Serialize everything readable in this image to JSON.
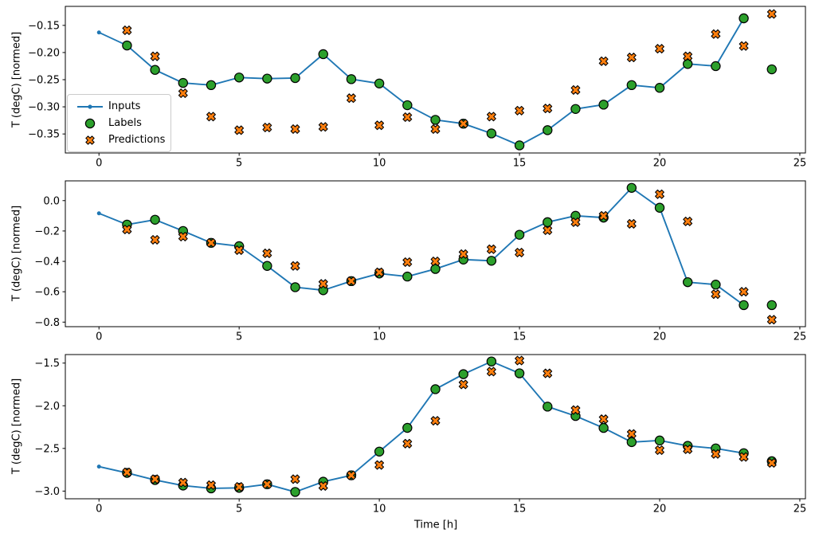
{
  "figure": {
    "xlabel": "Time [h]",
    "ylabel": "T (degC) [normed]",
    "legend": {
      "entries": [
        {
          "label": "Inputs",
          "marker": "line-with-dot",
          "color": "#1f77b4"
        },
        {
          "label": "Labels",
          "marker": "circle",
          "color": "#2ca02c"
        },
        {
          "label": "Predictions",
          "marker": "X",
          "color": "#ff7f0e"
        }
      ]
    },
    "colors": {
      "inputs": "#1f77b4",
      "labels": "#2ca02c",
      "predictions": "#ff7f0e",
      "marker_edge": "#000000",
      "axis": "#000000",
      "legend_border": "#cbcbcb"
    }
  },
  "chart_data": [
    {
      "type": "line",
      "title": "",
      "ylabel": "T (degC) [normed]",
      "xlabel": "",
      "xlim": [
        -1.2,
        25.2
      ],
      "ylim": [
        -0.385,
        -0.115
      ],
      "xticks": [
        0,
        5,
        10,
        15,
        20,
        25
      ],
      "yticks": [
        -0.15,
        -0.2,
        -0.25,
        -0.3,
        -0.35
      ],
      "ytick_labels": [
        "−0.15",
        "−0.20",
        "−0.25",
        "−0.30",
        "−0.35"
      ],
      "grid": false,
      "legend_position": "center left",
      "series": [
        {
          "name": "Inputs",
          "type": "line",
          "marker": "dot",
          "color": "#1f77b4",
          "x": [
            0,
            1,
            2,
            3,
            4,
            5,
            6,
            7,
            8,
            9,
            10,
            11,
            12,
            13,
            14,
            15,
            16,
            17,
            18,
            19,
            20,
            21,
            22,
            23
          ],
          "y": [
            -0.163,
            -0.187,
            -0.232,
            -0.256,
            -0.26,
            -0.246,
            -0.248,
            -0.247,
            -0.203,
            -0.249,
            -0.257,
            -0.297,
            -0.324,
            -0.331,
            -0.349,
            -0.371,
            -0.343,
            -0.304,
            -0.296,
            -0.26,
            -0.265,
            -0.221,
            -0.225,
            -0.137
          ]
        },
        {
          "name": "Labels",
          "type": "scatter",
          "marker": "circle",
          "color": "#2ca02c",
          "edge": "#000000",
          "x": [
            1,
            2,
            3,
            4,
            5,
            6,
            7,
            8,
            9,
            10,
            11,
            12,
            13,
            14,
            15,
            16,
            17,
            18,
            19,
            20,
            21,
            22,
            23,
            24
          ],
          "y": [
            -0.187,
            -0.232,
            -0.256,
            -0.26,
            -0.246,
            -0.248,
            -0.247,
            -0.203,
            -0.249,
            -0.257,
            -0.297,
            -0.324,
            -0.331,
            -0.349,
            -0.371,
            -0.343,
            -0.304,
            -0.296,
            -0.26,
            -0.265,
            -0.221,
            -0.225,
            -0.137,
            -0.231
          ]
        },
        {
          "name": "Predictions",
          "type": "scatter",
          "marker": "X",
          "color": "#ff7f0e",
          "edge": "#000000",
          "x": [
            1,
            2,
            3,
            4,
            5,
            6,
            7,
            8,
            9,
            10,
            11,
            12,
            13,
            14,
            15,
            16,
            17,
            18,
            19,
            20,
            21,
            22,
            23,
            24
          ],
          "y": [
            -0.159,
            -0.207,
            -0.275,
            -0.318,
            -0.343,
            -0.338,
            -0.341,
            -0.337,
            -0.284,
            -0.334,
            -0.319,
            -0.341,
            -0.331,
            -0.318,
            -0.307,
            -0.303,
            -0.269,
            -0.216,
            -0.209,
            -0.193,
            -0.207,
            -0.166,
            -0.188,
            -0.129
          ]
        }
      ]
    },
    {
      "type": "line",
      "title": "",
      "ylabel": "T (degC) [normed]",
      "xlabel": "",
      "xlim": [
        -1.2,
        25.2
      ],
      "ylim": [
        -0.83,
        0.13
      ],
      "xticks": [
        0,
        5,
        10,
        15,
        20,
        25
      ],
      "yticks": [
        0.0,
        -0.2,
        -0.4,
        -0.6,
        -0.8
      ],
      "ytick_labels": [
        "0.0",
        "−0.2",
        "−0.4",
        "−0.6",
        "−0.8"
      ],
      "grid": false,
      "legend_position": "none",
      "series": [
        {
          "name": "Inputs",
          "type": "line",
          "marker": "dot",
          "color": "#1f77b4",
          "x": [
            0,
            1,
            2,
            3,
            4,
            5,
            6,
            7,
            8,
            9,
            10,
            11,
            12,
            13,
            14,
            15,
            16,
            17,
            18,
            19,
            20,
            21,
            22,
            23
          ],
          "y": [
            -0.084,
            -0.158,
            -0.126,
            -0.2,
            -0.278,
            -0.3,
            -0.43,
            -0.57,
            -0.59,
            -0.53,
            -0.48,
            -0.5,
            -0.45,
            -0.388,
            -0.396,
            -0.225,
            -0.142,
            -0.1,
            -0.112,
            0.084,
            -0.047,
            -0.537,
            -0.553,
            -0.688
          ]
        },
        {
          "name": "Labels",
          "type": "scatter",
          "marker": "circle",
          "color": "#2ca02c",
          "edge": "#000000",
          "x": [
            1,
            2,
            3,
            4,
            5,
            6,
            7,
            8,
            9,
            10,
            11,
            12,
            13,
            14,
            15,
            16,
            17,
            18,
            19,
            20,
            21,
            22,
            23,
            24
          ],
          "y": [
            -0.158,
            -0.126,
            -0.2,
            -0.278,
            -0.3,
            -0.43,
            -0.57,
            -0.59,
            -0.53,
            -0.48,
            -0.5,
            -0.45,
            -0.388,
            -0.396,
            -0.225,
            -0.142,
            -0.1,
            -0.112,
            0.084,
            -0.047,
            -0.537,
            -0.553,
            -0.688,
            -0.688
          ]
        },
        {
          "name": "Predictions",
          "type": "scatter",
          "marker": "X",
          "color": "#ff7f0e",
          "edge": "#000000",
          "x": [
            1,
            2,
            3,
            4,
            5,
            6,
            7,
            8,
            9,
            10,
            11,
            12,
            13,
            14,
            15,
            16,
            17,
            18,
            19,
            20,
            21,
            22,
            23,
            24
          ],
          "y": [
            -0.19,
            -0.258,
            -0.237,
            -0.278,
            -0.326,
            -0.347,
            -0.43,
            -0.548,
            -0.53,
            -0.472,
            -0.405,
            -0.4,
            -0.352,
            -0.32,
            -0.342,
            -0.195,
            -0.142,
            -0.1,
            -0.153,
            0.042,
            -0.137,
            -0.616,
            -0.6,
            -0.784
          ]
        }
      ]
    },
    {
      "type": "line",
      "title": "",
      "ylabel": "T (degC) [normed]",
      "xlabel": "Time [h]",
      "xlim": [
        -1.2,
        25.2
      ],
      "ylim": [
        -3.09,
        -1.4
      ],
      "xticks": [
        0,
        5,
        10,
        15,
        20,
        25
      ],
      "yticks": [
        -1.5,
        -2.0,
        -2.5,
        -3.0
      ],
      "ytick_labels": [
        "−1.5",
        "−2.0",
        "−2.5",
        "−3.0"
      ],
      "grid": false,
      "legend_position": "none",
      "series": [
        {
          "name": "Inputs",
          "type": "line",
          "marker": "dot",
          "color": "#1f77b4",
          "x": [
            0,
            1,
            2,
            3,
            4,
            5,
            6,
            7,
            8,
            9,
            10,
            11,
            12,
            13,
            14,
            15,
            16,
            17,
            18,
            19,
            20,
            21,
            22,
            23
          ],
          "y": [
            -2.713,
            -2.787,
            -2.87,
            -2.935,
            -2.968,
            -2.962,
            -2.92,
            -3.01,
            -2.89,
            -2.815,
            -2.537,
            -2.259,
            -1.806,
            -1.63,
            -1.481,
            -1.62,
            -2.01,
            -2.12,
            -2.26,
            -2.426,
            -2.407,
            -2.47,
            -2.5,
            -2.556
          ]
        },
        {
          "name": "Labels",
          "type": "scatter",
          "marker": "circle",
          "color": "#2ca02c",
          "edge": "#000000",
          "x": [
            1,
            2,
            3,
            4,
            5,
            6,
            7,
            8,
            9,
            10,
            11,
            12,
            13,
            14,
            15,
            16,
            17,
            18,
            19,
            20,
            21,
            22,
            23,
            24
          ],
          "y": [
            -2.787,
            -2.87,
            -2.935,
            -2.968,
            -2.962,
            -2.92,
            -3.01,
            -2.89,
            -2.815,
            -2.537,
            -2.259,
            -1.806,
            -1.63,
            -1.481,
            -1.62,
            -2.01,
            -2.12,
            -2.26,
            -2.426,
            -2.407,
            -2.47,
            -2.5,
            -2.556,
            -2.65
          ]
        },
        {
          "name": "Predictions",
          "type": "scatter",
          "marker": "X",
          "color": "#ff7f0e",
          "edge": "#000000",
          "x": [
            1,
            2,
            3,
            4,
            5,
            6,
            7,
            8,
            9,
            10,
            11,
            12,
            13,
            14,
            15,
            16,
            17,
            18,
            19,
            20,
            21,
            22,
            23,
            24
          ],
          "y": [
            -2.78,
            -2.86,
            -2.9,
            -2.93,
            -2.95,
            -2.92,
            -2.86,
            -2.94,
            -2.815,
            -2.694,
            -2.444,
            -2.176,
            -1.75,
            -1.6,
            -1.47,
            -1.62,
            -2.05,
            -2.157,
            -2.33,
            -2.52,
            -2.51,
            -2.565,
            -2.6,
            -2.67
          ]
        }
      ]
    }
  ]
}
